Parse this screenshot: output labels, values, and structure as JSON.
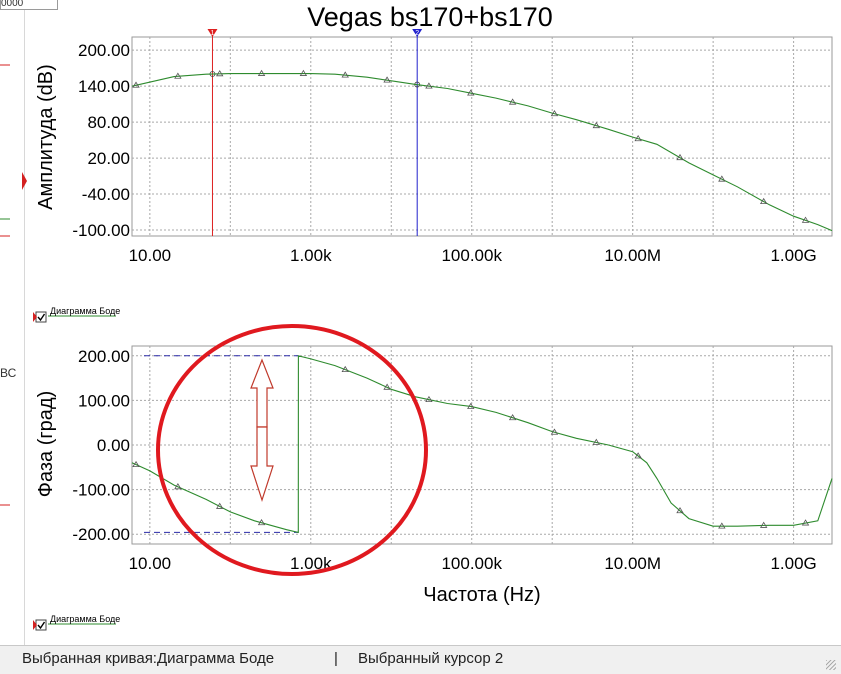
{
  "window": {
    "top_field_text": "0000",
    "side_text": "ВС"
  },
  "chart_data": [
    {
      "type": "line",
      "title": "Vegas bs170+bs170",
      "xlabel": "",
      "ylabel": "Амплитуда (dB)",
      "x_scale": "log",
      "xlim": [
        6,
        3000000000
      ],
      "ylim": [
        -110,
        222
      ],
      "x_ticks": [
        10,
        1000,
        100000,
        10000000,
        1000000000
      ],
      "x_tick_labels": [
        "10.00",
        "1.00k",
        "100.00k",
        "10.00M",
        "1.00G"
      ],
      "y_ticks": [
        200,
        140,
        80,
        20,
        -40,
        -100
      ],
      "y_tick_labels": [
        "200.00",
        "140.00",
        "80.00",
        "20.00",
        "-40.00",
        "-100.00"
      ],
      "grid": true,
      "legend": "Диаграмма Боде",
      "series": [
        {
          "name": "Диаграмма Боде",
          "color": "#2e8b2e",
          "x": [
            6,
            20,
            50,
            100,
            200,
            500,
            1000,
            2000,
            5000,
            10000,
            20000,
            50000,
            100000,
            200000,
            500000,
            1000000,
            2000000,
            5000000,
            10000000,
            20000000,
            50000000,
            100000000,
            200000000,
            500000000,
            1000000000,
            2000000000,
            3000000000
          ],
          "y": [
            140,
            156,
            160,
            161,
            161,
            161,
            161,
            160,
            155,
            149,
            143,
            136,
            128,
            120,
            107,
            95,
            84,
            68,
            55,
            43,
            12,
            -8,
            -28,
            -58,
            -77,
            -91,
            -101
          ]
        }
      ],
      "cursors": [
        {
          "label": "1",
          "x": 60,
          "color": "#dd2020"
        },
        {
          "label": "2",
          "x": 21000,
          "color": "#2020cc"
        }
      ]
    },
    {
      "type": "line",
      "xlabel": "Частота (Hz)",
      "ylabel": "Фаза (град)",
      "x_scale": "log",
      "xlim": [
        6,
        3000000000
      ],
      "ylim": [
        -222,
        222
      ],
      "x_ticks": [
        10,
        1000,
        100000,
        10000000,
        1000000000
      ],
      "x_tick_labels": [
        "10.00",
        "1.00k",
        "100.00k",
        "10.00M",
        "1.00G"
      ],
      "y_ticks": [
        200,
        100,
        0,
        -100,
        -200
      ],
      "y_tick_labels": [
        "200.00",
        "100.00",
        "0.00",
        "-100.00",
        "-200.00"
      ],
      "grid": true,
      "legend": "Диаграмма Боде",
      "series": [
        {
          "name": "Диаграмма Боде",
          "color": "#2e8b2e",
          "x": [
            6,
            10,
            20,
            50,
            100,
            200,
            500,
            700,
            700.5,
            1000,
            2000,
            5000,
            10000,
            20000,
            50000,
            100000,
            200000,
            500000,
            1000000,
            2000000,
            5000000,
            10000000,
            15000000,
            20000000,
            30000000,
            50000000,
            100000000,
            200000000,
            500000000,
            1000000000,
            2000000000,
            3000000000
          ],
          "y": [
            -40,
            -58,
            -90,
            -122,
            -150,
            -170,
            -190,
            -196,
            200,
            193,
            178,
            150,
            125,
            108,
            93,
            86,
            73,
            50,
            30,
            15,
            0,
            -15,
            -40,
            -75,
            -130,
            -165,
            -182,
            -182,
            -180,
            -180,
            -170,
            -75
          ]
        }
      ],
      "annotations": {
        "dashed_levels": [
          200,
          -196
        ],
        "arrow_color": "#c0392b",
        "circle_color": "#e0191f"
      }
    }
  ],
  "legends": {
    "top": "Диаграмма Боде",
    "bottom": "Диаграмма Боде"
  },
  "statusbar": {
    "selected_curve": "Выбранная кривая:Диаграмма Боде",
    "separator": "|",
    "selected_cursor": "Выбранный курсор 2"
  }
}
